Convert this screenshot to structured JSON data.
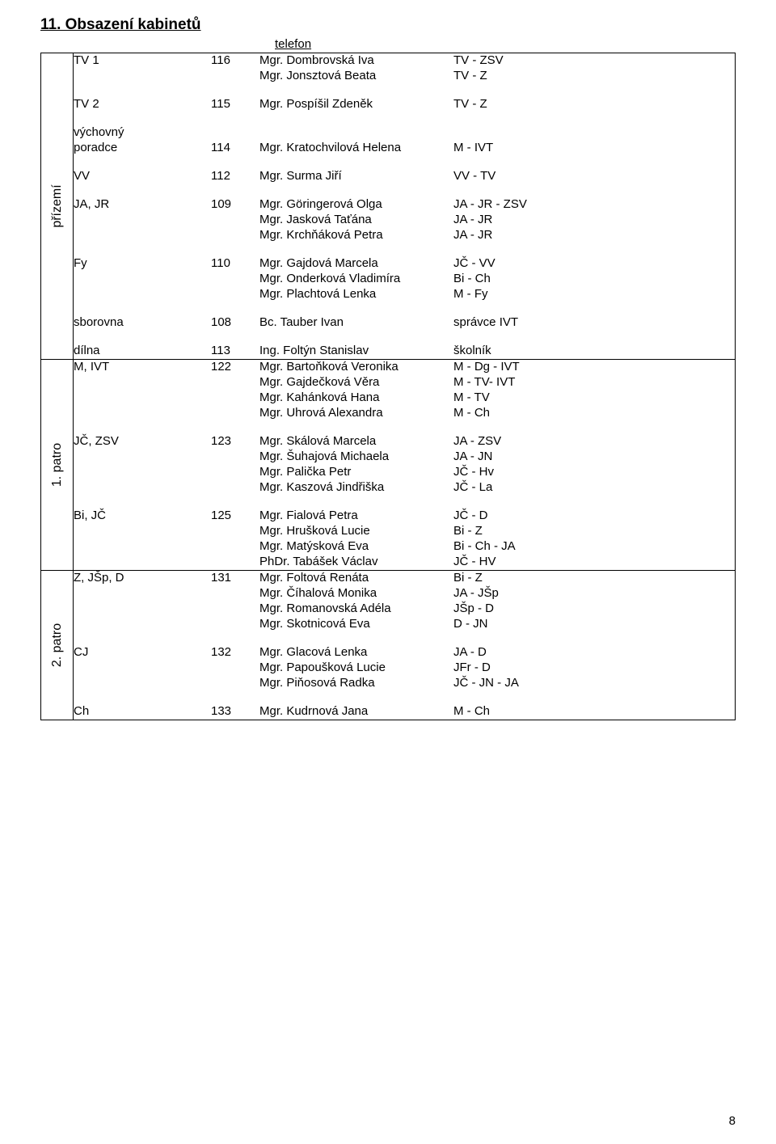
{
  "title": "11. Obsazení kabinetů",
  "telefon_header": "telefon",
  "page_number": "8",
  "floors": [
    {
      "label": "přízemí",
      "groups": [
        {
          "subject": "TV 1",
          "phone": "116",
          "people": [
            {
              "name": "Mgr. Dombrovská Iva",
              "assign": "TV - ZSV"
            },
            {
              "name": "Mgr. Jonsztová Beata",
              "assign": "TV - Z"
            }
          ]
        },
        {
          "subject": "TV 2",
          "phone": "115",
          "people": [
            {
              "name": "Mgr. Pospíšil Zdeněk",
              "assign": "TV - Z"
            }
          ]
        },
        {
          "subject": "výchovný\nporadce",
          "phone": "114",
          "people": [
            {
              "name": "Mgr. Kratochvilová Helena",
              "assign": "M - IVT"
            }
          ]
        },
        {
          "subject": "VV",
          "phone": "112",
          "people": [
            {
              "name": "Mgr. Surma Jiří",
              "assign": "VV - TV"
            }
          ]
        },
        {
          "subject": "JA, JR",
          "phone": "109",
          "people": [
            {
              "name": "Mgr. Göringerová Olga",
              "assign": "JA - JR - ZSV"
            },
            {
              "name": "Mgr. Jasková Taťána",
              "assign": "JA - JR"
            },
            {
              "name": "Mgr. Krchňáková Petra",
              "assign": "JA - JR"
            }
          ]
        },
        {
          "subject": "Fy",
          "phone": "110",
          "people": [
            {
              "name": "Mgr. Gajdová Marcela",
              "assign": "JČ - VV"
            },
            {
              "name": "Mgr. Onderková Vladimíra",
              "assign": "Bi - Ch"
            },
            {
              "name": "Mgr. Plachtová Lenka",
              "assign": "M - Fy"
            }
          ]
        },
        {
          "subject": "sborovna",
          "phone": "108",
          "people": [
            {
              "name": "Bc. Tauber Ivan",
              "assign": "správce IVT"
            }
          ]
        },
        {
          "subject": "dílna",
          "phone": "113",
          "people": [
            {
              "name": "Ing. Foltýn Stanislav",
              "assign": "školník"
            }
          ]
        }
      ]
    },
    {
      "label": "1. patro",
      "groups": [
        {
          "subject": "M, IVT",
          "phone": "122",
          "people": [
            {
              "name": "Mgr. Bartoňková Veronika",
              "assign": "M - Dg - IVT"
            },
            {
              "name": "Mgr. Gajdečková Věra",
              "assign": "M - TV- IVT"
            },
            {
              "name": "Mgr. Kahánková Hana",
              "assign": "M - TV"
            },
            {
              "name": "Mgr. Uhrová Alexandra",
              "assign": "M - Ch"
            }
          ]
        },
        {
          "subject": "JČ, ZSV",
          "phone": "123",
          "people": [
            {
              "name": "Mgr. Skálová Marcela",
              "assign": "JA - ZSV"
            },
            {
              "name": "Mgr. Šuhajová Michaela",
              "assign": "JA - JN"
            },
            {
              "name": "Mgr. Palička Petr",
              "assign": "JČ - Hv"
            },
            {
              "name": "Mgr. Kaszová Jindřiška",
              "assign": "JČ - La"
            }
          ]
        },
        {
          "subject": "Bi, JČ",
          "phone": "125",
          "people": [
            {
              "name": "Mgr. Fialová Petra",
              "assign": "JČ - D"
            },
            {
              "name": "Mgr. Hrušková Lucie",
              "assign": "Bi - Z"
            },
            {
              "name": "Mgr. Matýsková Eva",
              "assign": "Bi - Ch - JA"
            },
            {
              "name": "PhDr. Tabášek Václav",
              "assign": "JČ - HV"
            }
          ]
        }
      ]
    },
    {
      "label": "2. patro",
      "groups": [
        {
          "subject": "Z, JŠp, D",
          "phone": "131",
          "people": [
            {
              "name": "Mgr. Foltová Renáta",
              "assign": "Bi - Z"
            },
            {
              "name": "Mgr. Číhalová Monika",
              "assign": "JA - JŠp"
            },
            {
              "name": "Mgr. Romanovská Adéla",
              "assign": "JŠp - D"
            },
            {
              "name": "Mgr. Skotnicová Eva",
              "assign": "D - JN"
            }
          ]
        },
        {
          "subject": "CJ",
          "phone": "132",
          "people": [
            {
              "name": "Mgr. Glacová Lenka",
              "assign": "JA - D"
            },
            {
              "name": "Mgr. Papoušková Lucie",
              "assign": "JFr - D"
            },
            {
              "name": "Mgr. Piňosová Radka",
              "assign": "JČ - JN - JA"
            }
          ]
        },
        {
          "subject": "Ch",
          "phone": "133",
          "people": [
            {
              "name": "Mgr. Kudrnová Jana",
              "assign": "M - Ch"
            }
          ]
        }
      ]
    }
  ]
}
